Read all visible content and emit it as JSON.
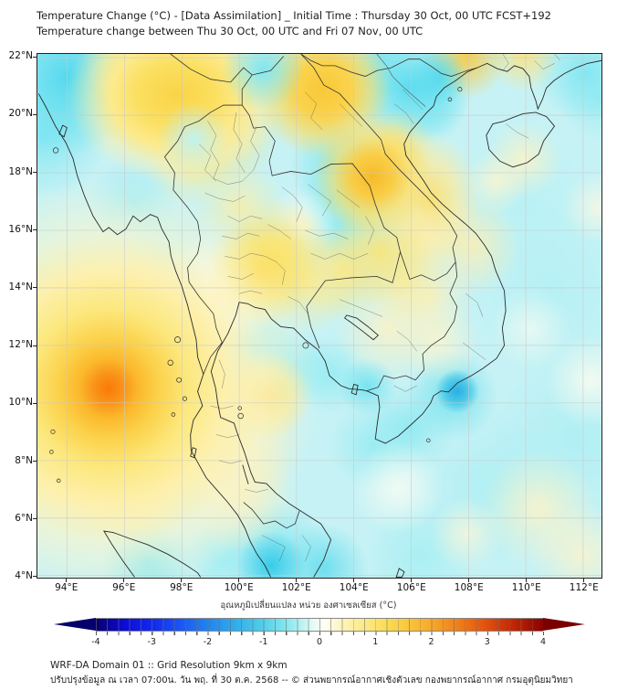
{
  "header": {
    "line1": "Temperature Change (°C) - [Data Assimilation] _ Initial Time : Thursday 30 Oct, 00 UTC FCST+192",
    "line2": "Temperature change between Thu 30 Oct, 00 UTC and Fri 07 Nov, 00 UTC"
  },
  "map": {
    "lat_labels": [
      "22°N",
      "20°N",
      "18°N",
      "16°N",
      "14°N",
      "12°N",
      "10°N",
      "8°N",
      "6°N",
      "4°N"
    ],
    "lon_labels": [
      "94°E",
      "96°E",
      "98°E",
      "100°E",
      "102°E",
      "104°E",
      "106°E",
      "108°E",
      "110°E",
      "112°E"
    ],
    "extent": {
      "lon_min": 93.0,
      "lon_max": 112.6,
      "lat_min": 3.9,
      "lat_max": 22.1
    }
  },
  "colorbar": {
    "title": "อุณหภูมิเปลี่ยนแปลง หน่วย องศาเซลเซียส (°C)",
    "tick_labels": [
      "-4",
      "-3",
      "-2",
      "-1",
      "0",
      "1",
      "2",
      "3",
      "4"
    ],
    "min": -4,
    "max": 4,
    "unit": "°C",
    "negative_color": "#0b0bd6",
    "zero_color": "#fefef4",
    "positive_color": "#e14f0d"
  },
  "footer": {
    "line1": "WRF-DA Domain 01 :: Grid Resolution 9km x 9km",
    "line2": "ปรับปรุงข้อมูล ณ เวลา 07:00น. วัน พฤ. ที่ 30 ต.ค. 2568 -- © ส่วนพยากรณ์อากาศเชิงตัวเลข กองพยากรณ์อากาศ กรมอุตุนิยมวิทยา"
  }
}
